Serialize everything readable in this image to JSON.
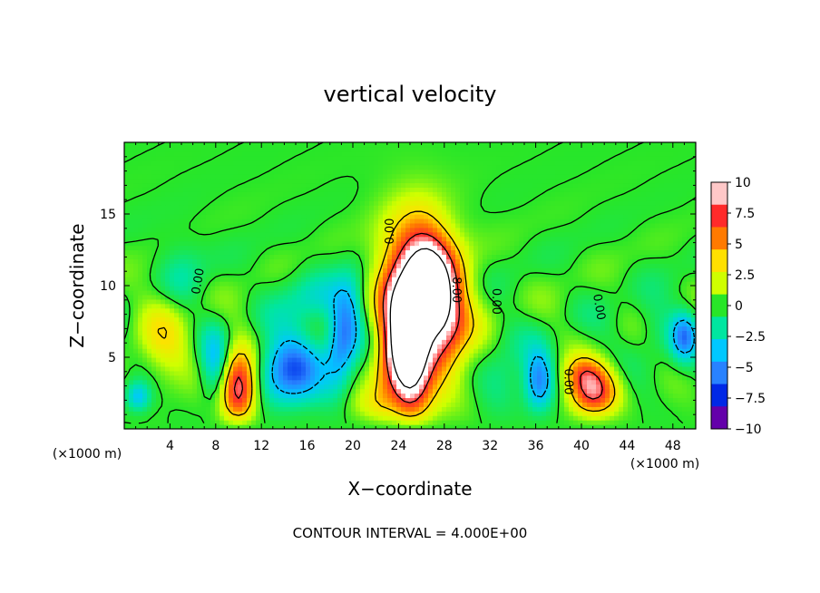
{
  "chart_data": {
    "type": "heatmap",
    "title": "vertical velocity",
    "xlabel": "X−coordinate",
    "ylabel": "Z−coordinate",
    "x_unit_left": "(×1000 m)",
    "x_unit_right": "(×1000 m)",
    "xlim": [
      0,
      50
    ],
    "ylim": [
      0,
      20
    ],
    "xticks": [
      4,
      8,
      12,
      16,
      20,
      24,
      28,
      32,
      36,
      40,
      44,
      48
    ],
    "yticks": [
      5,
      10,
      15
    ],
    "footer": "CONTOUR INTERVAL = 4.000E+00",
    "colorbar": {
      "range": [
        -10,
        10
      ],
      "ticks": [
        "10",
        "7.5",
        "5",
        "2.5",
        "0",
        "−2.5",
        "−5",
        "−7.5",
        "−10"
      ],
      "colors": [
        "#ffc8c8",
        "#ff2a2a",
        "#ff7a00",
        "#ffe000",
        "#cfff00",
        "#28e628",
        "#00e6a0",
        "#00c8ff",
        "#2882ff",
        "#0028e6",
        "#6400aa"
      ]
    },
    "contour_labels": [
      {
        "text": "0.00",
        "x": 6.5,
        "z": 10.3,
        "rot": -80
      },
      {
        "text": "0.00",
        "x": 23.3,
        "z": 13.8,
        "rot": -90
      },
      {
        "text": "8.00",
        "x": 29.0,
        "z": 9.7,
        "rot": 90
      },
      {
        "text": "0.00",
        "x": 32.5,
        "z": 8.9,
        "rot": 90
      },
      {
        "text": "0.00",
        "x": 38.8,
        "z": 3.3,
        "rot": 90
      },
      {
        "text": "0.00",
        "x": 41.5,
        "z": 8.5,
        "rot": 80
      }
    ],
    "features": [
      {
        "x": 24.6,
        "z": 5.2,
        "sx": 1.3,
        "sz": 3.6,
        "amp": 15,
        "rot": -0.12
      },
      {
        "x": 27.0,
        "z": 9.6,
        "sx": 1.6,
        "sz": 2.9,
        "amp": 13,
        "rot": -0.25
      },
      {
        "x": 26.5,
        "z": 7.8,
        "sx": 2.6,
        "sz": 4.2,
        "amp": 4,
        "rot": -0.2
      },
      {
        "x": 25.8,
        "z": 11.5,
        "sx": 2.4,
        "sz": 3.0,
        "amp": 2.5,
        "rot": 0
      },
      {
        "x": 10.0,
        "z": 2.6,
        "sx": 1.1,
        "sz": 2.0,
        "amp": 11,
        "rot": 0
      },
      {
        "x": 41.0,
        "z": 2.5,
        "sx": 1.5,
        "sz": 1.3,
        "amp": 10,
        "rot": 0
      },
      {
        "x": 40.0,
        "z": 4.0,
        "sx": 1.2,
        "sz": 0.8,
        "amp": 3,
        "rot": 0
      },
      {
        "x": 3.5,
        "z": 6.5,
        "sx": 1.8,
        "sz": 2.4,
        "amp": 3,
        "rot": 0
      },
      {
        "x": 21.5,
        "z": 1.5,
        "sx": 1.5,
        "sz": 1.0,
        "amp": 2.5,
        "rot": 0
      },
      {
        "x": 14.5,
        "z": 4.0,
        "sx": 2.0,
        "sz": 1.8,
        "amp": -7,
        "rot": 0
      },
      {
        "x": 19.2,
        "z": 6.5,
        "sx": 1.0,
        "sz": 2.6,
        "amp": -6,
        "rot": 0.15
      },
      {
        "x": 36.3,
        "z": 3.2,
        "sx": 0.9,
        "sz": 1.6,
        "amp": -6,
        "rot": 0
      },
      {
        "x": 1.2,
        "z": 2.2,
        "sx": 0.8,
        "sz": 0.8,
        "amp": -5,
        "rot": 0
      },
      {
        "x": 8.0,
        "z": 4.5,
        "sx": 0.9,
        "sz": 1.8,
        "amp": -4,
        "rot": 0
      },
      {
        "x": 49.0,
        "z": 6.5,
        "sx": 0.8,
        "sz": 1.2,
        "amp": -5,
        "rot": 0
      },
      {
        "x": 16.5,
        "z": 9.0,
        "sx": 2.0,
        "sz": 1.4,
        "amp": -2.5,
        "rot": 0
      },
      {
        "x": 5.0,
        "z": 10.5,
        "sx": 1.5,
        "sz": 2.0,
        "amp": -1.8,
        "rot": 0
      },
      {
        "x": 33.0,
        "z": 3.5,
        "sx": 1.5,
        "sz": 2.0,
        "amp": -2,
        "rot": 0
      },
      {
        "x": 46.5,
        "z": 7.0,
        "sx": 1.5,
        "sz": 1.5,
        "amp": -1.5,
        "rot": 0
      },
      {
        "x": 22.5,
        "z": 3.0,
        "sx": 0.8,
        "sz": 2.0,
        "amp": 2,
        "rot": 0
      }
    ]
  }
}
